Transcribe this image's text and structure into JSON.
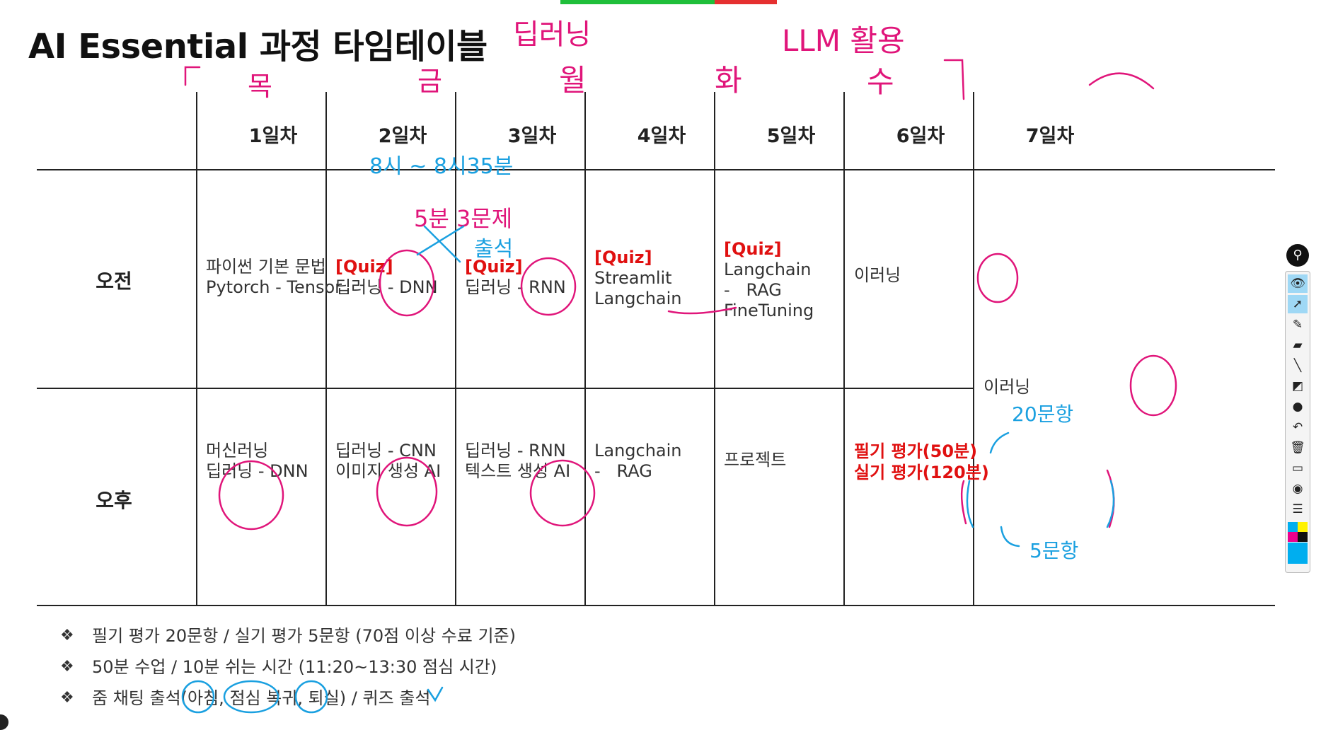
{
  "title": "AI Essential 과정 타임테이블",
  "days": [
    "1일차",
    "2일차",
    "3일차",
    "4일차",
    "5일차",
    "6일차",
    "7일차"
  ],
  "rows": {
    "morning": "오전",
    "afternoon": "오후"
  },
  "morning": [
    {
      "quiz": "",
      "lines": [
        "파이썬 기본 문법",
        "Pytorch - Tensor"
      ]
    },
    {
      "quiz": "[Quiz]",
      "lines": [
        "딥러닝 - DNN"
      ]
    },
    {
      "quiz": "[Quiz]",
      "lines": [
        "딥러닝 - RNN"
      ]
    },
    {
      "quiz": "[Quiz]",
      "lines": [
        "Streamlit",
        "Langchain"
      ]
    },
    {
      "quiz": "[Quiz]",
      "lines": [
        "Langchain",
        "-   RAG",
        "FineTuning"
      ]
    },
    {
      "quiz": "",
      "lines": [
        "이러닝"
      ]
    }
  ],
  "afternoon": [
    {
      "lines": [
        "머신러닝",
        "딥러닝 - DNN"
      ]
    },
    {
      "lines": [
        "딥러닝 - CNN",
        "이미지 생성 AI"
      ]
    },
    {
      "lines": [
        "딥러닝 - RNN",
        "텍스트 생성 AI"
      ]
    },
    {
      "lines": [
        "Langchain",
        "-   RAG"
      ]
    },
    {
      "lines": [
        "프로젝트"
      ]
    },
    {
      "lines": [
        "필기 평가(50분)",
        "실기 평가(120분)"
      ]
    }
  ],
  "day7": "이러닝",
  "notes": [
    "필기 평가 20문항 / 실기 평가 5문항 (70점 이상 수료 기준)",
    "50분 수업 / 10분 쉬는 시간 (11:20~13:30 점심 시간)",
    "줌 채팅 출석(아침, 점심 복귀, 퇴실) / 퀴즈 출석"
  ],
  "handwriting": {
    "top_deeplearning": "딥러닝",
    "top_llm": "LLM 활용",
    "weekdays": [
      "목",
      "금",
      "월",
      "화",
      "화",
      "수"
    ],
    "time_note": "8시 ~ 8시35분",
    "quiz_note": "5분 3문제",
    "attend_note": "출석",
    "written_count": "20문항",
    "practical_count": "5문항"
  },
  "colors": {
    "quiz_red": "#e01010",
    "ink_magenta": "#e0157a",
    "ink_blue": "#1aa0e0",
    "toolbar_active": "#9fd8f5"
  },
  "toolbar": {
    "icons": [
      "pin-icon",
      "eye-icon",
      "pointer-icon",
      "pen-icon",
      "highlighter-icon",
      "line-icon",
      "eraser-icon",
      "dot-icon",
      "undo-icon",
      "trash-icon",
      "screen-icon",
      "camera-icon",
      "clipboard-icon"
    ]
  }
}
